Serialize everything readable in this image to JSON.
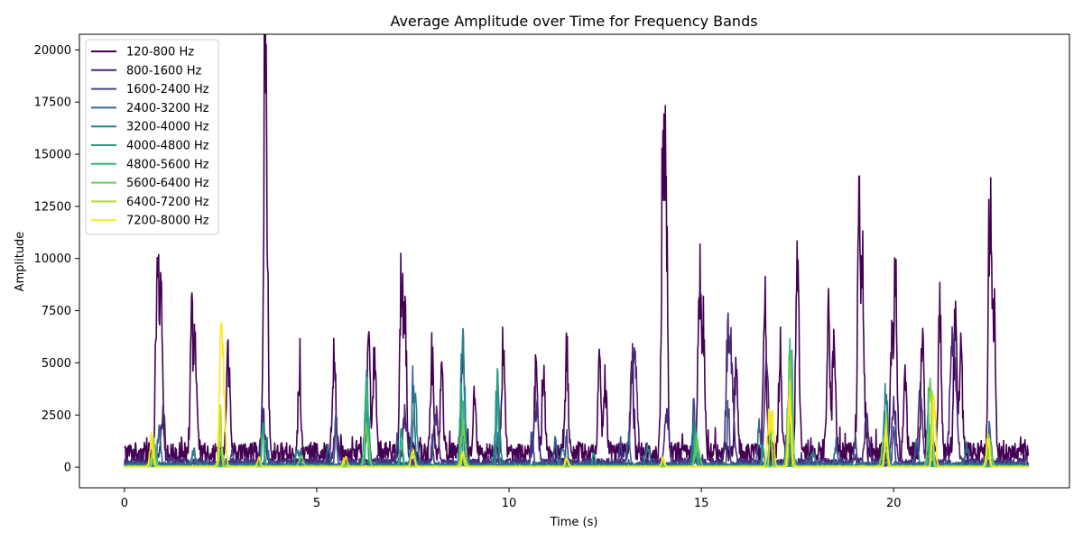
{
  "chart_data": {
    "type": "line",
    "title": "Average Amplitude over Time for Frequency Bands",
    "xlabel": "Time (s)",
    "ylabel": "Amplitude",
    "xlim": [
      -1.17,
      24.57
    ],
    "ylim": [
      -990,
      20750
    ],
    "xticks": [
      0,
      5,
      10,
      15,
      20
    ],
    "yticks": [
      0,
      2500,
      5000,
      7500,
      10000,
      12500,
      15000,
      17500,
      20000
    ],
    "xtick_labels": [
      "0",
      "5",
      "10",
      "15",
      "20"
    ],
    "ytick_labels": [
      "0",
      "2500",
      "5000",
      "7500",
      "10000",
      "12500",
      "15000",
      "17500",
      "20000"
    ],
    "grid": false,
    "legend_position": "top-left",
    "x_range": [
      0,
      23.5
    ],
    "series": [
      {
        "name": "120-800 Hz",
        "color": "#440154",
        "baseline": 700,
        "noise": 350,
        "peaks": [
          [
            0.85,
            10900
          ],
          [
            0.95,
            9700
          ],
          [
            1.75,
            8000
          ],
          [
            1.85,
            6000
          ],
          [
            2.7,
            6500
          ],
          [
            3.65,
            19700
          ],
          [
            3.7,
            11000
          ],
          [
            4.55,
            4500
          ],
          [
            5.45,
            6100
          ],
          [
            6.35,
            6700
          ],
          [
            6.5,
            6600
          ],
          [
            7.2,
            10300
          ],
          [
            7.3,
            8000
          ],
          [
            8.0,
            6200
          ],
          [
            8.25,
            5000
          ],
          [
            8.8,
            6500
          ],
          [
            9.1,
            3000
          ],
          [
            9.85,
            6900
          ],
          [
            10.7,
            5100
          ],
          [
            10.9,
            4500
          ],
          [
            11.5,
            6300
          ],
          [
            12.35,
            5800
          ],
          [
            12.5,
            4300
          ],
          [
            13.2,
            5300
          ],
          [
            14.0,
            17900
          ],
          [
            14.08,
            15000
          ],
          [
            14.95,
            10400
          ],
          [
            15.05,
            7500
          ],
          [
            15.9,
            5100
          ],
          [
            16.65,
            9300
          ],
          [
            17.05,
            6000
          ],
          [
            17.5,
            14300
          ],
          [
            18.3,
            9000
          ],
          [
            18.45,
            8000
          ],
          [
            19.1,
            14300
          ],
          [
            19.2,
            10500
          ],
          [
            19.95,
            6500
          ],
          [
            20.05,
            11000
          ],
          [
            20.3,
            5000
          ],
          [
            20.75,
            6900
          ],
          [
            21.2,
            8700
          ],
          [
            21.6,
            8100
          ],
          [
            21.75,
            6700
          ],
          [
            22.5,
            15800
          ],
          [
            22.6,
            9500
          ]
        ]
      },
      {
        "name": "800-1600 Hz",
        "color": "#482878",
        "baseline": 250,
        "noise": 150,
        "peaks": [
          [
            1.0,
            3000
          ],
          [
            3.6,
            3000
          ],
          [
            5.5,
            2200
          ],
          [
            7.3,
            3000
          ],
          [
            8.1,
            3100
          ],
          [
            10.7,
            3700
          ],
          [
            13.2,
            5200
          ],
          [
            13.3,
            4800
          ],
          [
            14.1,
            3200
          ],
          [
            15.7,
            7900
          ],
          [
            15.8,
            4000
          ],
          [
            16.7,
            5500
          ],
          [
            19.3,
            2800
          ],
          [
            20.0,
            3500
          ],
          [
            20.7,
            4300
          ],
          [
            21.5,
            5500
          ],
          [
            21.6,
            5300
          ]
        ]
      },
      {
        "name": "1600-2400 Hz",
        "color": "#3e4989",
        "baseline": 150,
        "noise": 90,
        "peaks": [
          [
            2.8,
            900
          ],
          [
            4.6,
            800
          ],
          [
            5.5,
            2800
          ],
          [
            7.1,
            1600
          ],
          [
            8.0,
            1500
          ],
          [
            10.6,
            2500
          ],
          [
            11.5,
            1800
          ],
          [
            12.9,
            1500
          ],
          [
            14.8,
            3700
          ],
          [
            15.7,
            3900
          ],
          [
            17.2,
            1500
          ],
          [
            19.0,
            2000
          ],
          [
            20.0,
            2600
          ]
        ]
      },
      {
        "name": "2400-3200 Hz",
        "color": "#31688e",
        "baseline": 100,
        "noise": 70,
        "peaks": [
          [
            0.9,
            2300
          ],
          [
            1.8,
            900
          ],
          [
            3.7,
            1500
          ],
          [
            5.3,
            1200
          ],
          [
            6.3,
            5200
          ],
          [
            7.5,
            4800
          ],
          [
            8.8,
            1900
          ],
          [
            9.7,
            1600
          ],
          [
            11.2,
            1400
          ],
          [
            13.1,
            1800
          ],
          [
            14.8,
            2500
          ],
          [
            16.5,
            2400
          ],
          [
            17.3,
            1000
          ],
          [
            18.5,
            1200
          ],
          [
            19.8,
            2300
          ],
          [
            20.6,
            1600
          ],
          [
            21.9,
            1200
          ],
          [
            22.5,
            2300
          ]
        ]
      },
      {
        "name": "3200-4000 Hz",
        "color": "#26828e",
        "baseline": 70,
        "noise": 50,
        "peaks": [
          [
            1.8,
            900
          ],
          [
            4.5,
            900
          ],
          [
            6.3,
            4300
          ],
          [
            7.55,
            4000
          ],
          [
            8.8,
            7600
          ],
          [
            9.7,
            5100
          ],
          [
            11.4,
            1000
          ],
          [
            13.6,
            1000
          ],
          [
            14.85,
            2100
          ],
          [
            16.8,
            1200
          ],
          [
            17.9,
            900
          ],
          [
            19.8,
            4400
          ],
          [
            21.0,
            1000
          ]
        ]
      },
      {
        "name": "4000-4800 Hz",
        "color": "#1f9e89",
        "baseline": 50,
        "noise": 40,
        "peaks": [
          [
            0.8,
            1200
          ],
          [
            2.5,
            1000
          ],
          [
            3.6,
            2700
          ],
          [
            6.3,
            3500
          ],
          [
            7.2,
            2500
          ],
          [
            8.75,
            5200
          ],
          [
            9.7,
            4800
          ],
          [
            12.2,
            1000
          ],
          [
            14.85,
            2500
          ],
          [
            16.6,
            1200
          ],
          [
            17.35,
            7700
          ],
          [
            19.8,
            3700
          ],
          [
            20.9,
            4000
          ]
        ]
      },
      {
        "name": "4800-5600 Hz",
        "color": "#35b779",
        "baseline": 40,
        "noise": 30,
        "peaks": [
          [
            0.8,
            1000
          ],
          [
            3.6,
            1900
          ],
          [
            6.3,
            4800
          ],
          [
            7.2,
            1500
          ],
          [
            8.8,
            3800
          ],
          [
            14.85,
            1600
          ],
          [
            16.8,
            2000
          ],
          [
            17.3,
            7000
          ],
          [
            19.8,
            2200
          ],
          [
            20.95,
            1800
          ],
          [
            22.5,
            1500
          ]
        ]
      },
      {
        "name": "5600-6400 Hz",
        "color": "#6ece58",
        "baseline": 30,
        "noise": 25,
        "peaks": [
          [
            0.75,
            900
          ],
          [
            2.5,
            1500
          ],
          [
            4.6,
            600
          ],
          [
            6.3,
            2200
          ],
          [
            7.5,
            900
          ],
          [
            8.8,
            2500
          ],
          [
            14.9,
            1500
          ],
          [
            17.3,
            6800
          ],
          [
            19.75,
            1800
          ],
          [
            20.95,
            4500
          ],
          [
            22.5,
            1200
          ]
        ]
      },
      {
        "name": "6400-7200 Hz",
        "color": "#b5de2b",
        "baseline": 25,
        "noise": 20,
        "peaks": [
          [
            0.75,
            2000
          ],
          [
            2.5,
            3000
          ],
          [
            5.7,
            500
          ],
          [
            8.8,
            700
          ],
          [
            11.5,
            600
          ],
          [
            14.0,
            500
          ],
          [
            16.8,
            3900
          ],
          [
            17.3,
            5000
          ],
          [
            19.8,
            2700
          ],
          [
            21.0,
            4500
          ],
          [
            22.45,
            2000
          ]
        ]
      },
      {
        "name": "7200-8000 Hz",
        "color": "#fde725",
        "baseline": 20,
        "noise": 15,
        "peaks": [
          [
            0.7,
            1700
          ],
          [
            2.5,
            5900
          ],
          [
            2.55,
            4200
          ],
          [
            2.6,
            2500
          ],
          [
            3.5,
            600
          ],
          [
            5.75,
            600
          ],
          [
            7.5,
            1000
          ],
          [
            8.8,
            900
          ],
          [
            11.5,
            600
          ],
          [
            14.0,
            500
          ],
          [
            16.75,
            3100
          ],
          [
            16.85,
            2800
          ],
          [
            17.3,
            4300
          ],
          [
            19.8,
            2100
          ],
          [
            21.05,
            4200
          ],
          [
            22.45,
            2100
          ]
        ]
      }
    ]
  }
}
